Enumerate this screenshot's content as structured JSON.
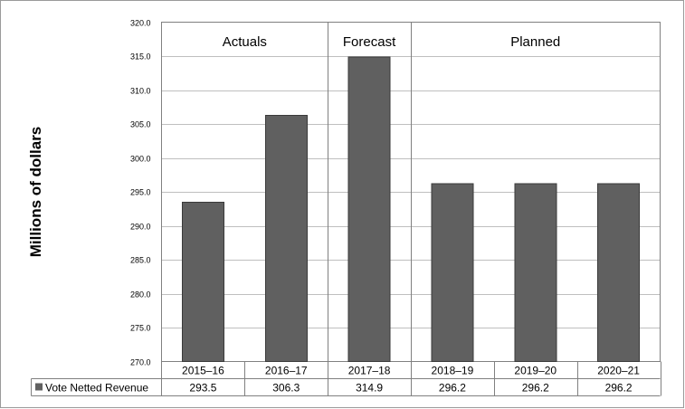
{
  "chart_data": {
    "type": "bar",
    "categories": [
      "2015–16",
      "2016–17",
      "2017–18",
      "2018–19",
      "2019–20",
      "2020–21"
    ],
    "series": [
      {
        "name": "Vote Netted Revenue",
        "values": [
          293.5,
          306.3,
          314.9,
          296.2,
          296.2,
          296.2
        ],
        "color": "#606060"
      }
    ],
    "data_labels": [
      "293.5",
      "306.3",
      "314.9",
      "296.2",
      "296.2",
      "296.2"
    ],
    "ylabel": "Millions of dollars",
    "ylim": [
      270,
      320
    ],
    "yticks": [
      "270.0",
      "275.0",
      "280.0",
      "285.0",
      "290.0",
      "295.0",
      "300.0",
      "305.0",
      "310.0",
      "315.0",
      "320.0"
    ],
    "sections": [
      {
        "label": "Actuals",
        "categories": 2
      },
      {
        "label": "Forecast",
        "categories": 1
      },
      {
        "label": "Planned",
        "categories": 3
      }
    ],
    "grid": true,
    "legend": "data-table"
  }
}
